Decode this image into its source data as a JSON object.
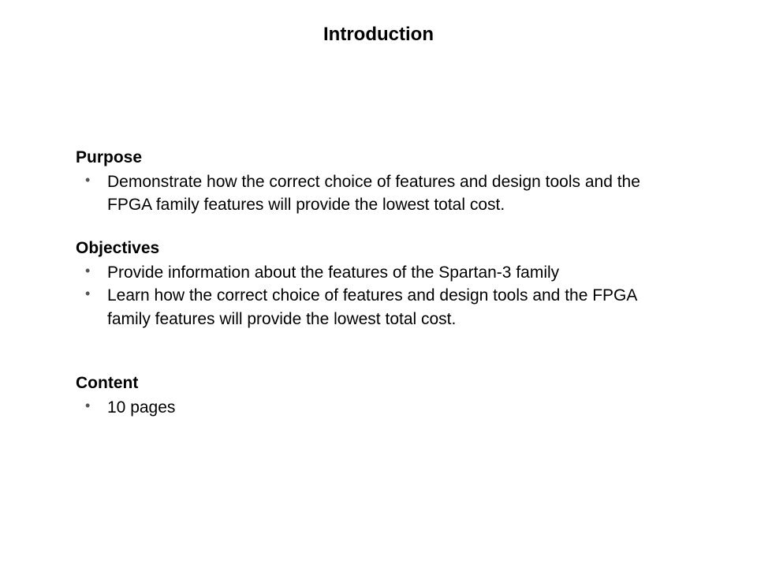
{
  "title": "Introduction",
  "sections": {
    "purpose": {
      "heading": "Purpose",
      "items": [
        "Demonstrate how the correct choice of features and design tools and the FPGA family features will provide the lowest total cost."
      ]
    },
    "objectives": {
      "heading": "Objectives",
      "items": [
        "Provide information about the features of the Spartan-3 family",
        "Learn how the correct choice of features and design tools and the FPGA family  features will provide the lowest total cost."
      ]
    },
    "content": {
      "heading": "Content",
      "items": [
        "10 pages"
      ]
    }
  },
  "styling": {
    "background_color": "#ffffff",
    "text_color": "#000000",
    "title_fontsize": 24,
    "heading_fontsize": 21,
    "body_fontsize": 21,
    "font_family": "Verdana, Geneva, sans-serif",
    "bullet_color": "#555555"
  }
}
